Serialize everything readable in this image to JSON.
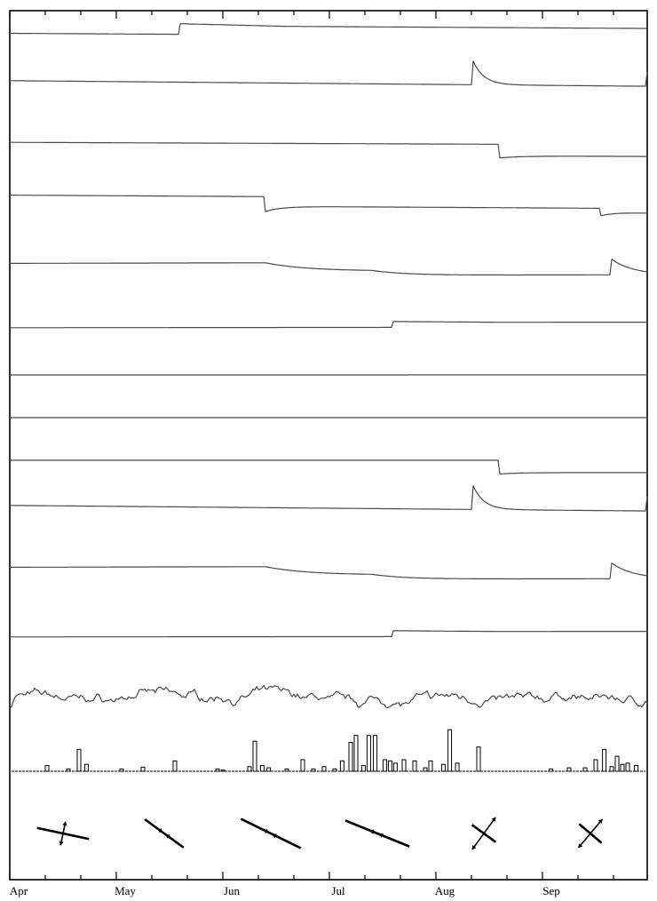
{
  "chart_data": {
    "type": "line",
    "x_axis": {
      "unit": "month",
      "tick_labels": [
        "Apr",
        "May",
        "Jun",
        "Jul",
        "Aug",
        "Sep"
      ],
      "range": [
        0,
        6
      ],
      "minor_ticks_per_month": 3
    },
    "series": [
      {
        "shape": "step",
        "base": 0.75,
        "slope": -0.3,
        "events": [
          {
            "t": 1.6,
            "kind": "step",
            "amp": 0.85,
            "recovery": 0.08
          }
        ]
      },
      {
        "shape": "step",
        "base": 0.8,
        "slope": -0.45,
        "events": [
          {
            "t": 4.35,
            "kind": "spike",
            "amp": 1.9,
            "decay": 0.1
          },
          {
            "t": 5.97,
            "kind": "spike",
            "amp": 1.5,
            "decay": 0.05
          }
        ]
      },
      {
        "shape": "step",
        "base": 0.7,
        "slope": -0.2,
        "events": [
          {
            "t": 4.6,
            "kind": "dip",
            "amp": -1.1,
            "decay": 0.2,
            "recovery": 0.85
          }
        ]
      },
      {
        "shape": "step",
        "base": 0.6,
        "slope": -0.3,
        "events": [
          {
            "t": 2.4,
            "kind": "dip",
            "amp": -1.2,
            "decay": 0.15,
            "recovery": 0.65
          },
          {
            "t": 5.55,
            "kind": "dip",
            "amp": -0.6,
            "decay": 0.1,
            "recovery": 0.6
          }
        ]
      },
      {
        "shape": "step",
        "base": 0.1,
        "slope": 0.1,
        "events": [
          {
            "t": 2.4,
            "kind": "drop",
            "amp": -0.6,
            "decay": 0.4
          },
          {
            "t": 3.4,
            "kind": "drop",
            "amp": -0.3,
            "decay": 0.3
          },
          {
            "t": 5.65,
            "kind": "spike",
            "amp": 1.1,
            "decay": 0.2
          }
        ]
      },
      {
        "shape": "step",
        "base": 0.1,
        "slope": 0.05,
        "events": [
          {
            "t": 3.6,
            "kind": "step",
            "amp": 0.55,
            "recovery": 0.04
          }
        ]
      },
      {
        "shape": "flat",
        "base": 0.0,
        "slope": 0.02,
        "events": []
      },
      {
        "shape": "flat",
        "base": 0.0,
        "slope": 0.0,
        "events": []
      },
      {
        "shape": "step",
        "base": 0.0,
        "slope": 0.0,
        "events": [
          {
            "t": 4.6,
            "kind": "dip",
            "amp": -1.1,
            "decay": 0.2,
            "recovery": 0.9
          }
        ]
      },
      {
        "shape": "step",
        "base": 0.8,
        "slope": -0.45,
        "events": [
          {
            "t": 4.35,
            "kind": "spike",
            "amp": 1.9,
            "decay": 0.1
          },
          {
            "t": 5.97,
            "kind": "spike",
            "amp": 1.5,
            "decay": 0.05
          }
        ]
      },
      {
        "shape": "step",
        "base": 0.1,
        "slope": 0.1,
        "events": [
          {
            "t": 2.4,
            "kind": "drop",
            "amp": -0.6,
            "decay": 0.4
          },
          {
            "t": 3.4,
            "kind": "drop",
            "amp": -0.3,
            "decay": 0.3
          },
          {
            "t": 5.65,
            "kind": "spike",
            "amp": 1.1,
            "decay": 0.2
          }
        ]
      },
      {
        "shape": "step",
        "base": 0.1,
        "slope": 0.05,
        "events": [
          {
            "t": 3.6,
            "kind": "step",
            "amp": 0.55,
            "recovery": 0.04
          }
        ]
      },
      {
        "shape": "noise",
        "base": 0.0,
        "slope": 0.0,
        "events": []
      }
    ],
    "bar_series": {
      "type": "bar",
      "values": [
        {
          "t": 0.35,
          "v": 0.25
        },
        {
          "t": 0.55,
          "v": 0.1
        },
        {
          "t": 0.65,
          "v": 0.95
        },
        {
          "t": 0.72,
          "v": 0.3
        },
        {
          "t": 1.05,
          "v": 0.1
        },
        {
          "t": 1.25,
          "v": 0.18
        },
        {
          "t": 1.55,
          "v": 0.45
        },
        {
          "t": 1.95,
          "v": 0.1
        },
        {
          "t": 2.0,
          "v": 0.05
        },
        {
          "t": 2.25,
          "v": 0.2
        },
        {
          "t": 2.3,
          "v": 1.3
        },
        {
          "t": 2.37,
          "v": 0.25
        },
        {
          "t": 2.43,
          "v": 0.15
        },
        {
          "t": 2.6,
          "v": 0.1
        },
        {
          "t": 2.75,
          "v": 0.5
        },
        {
          "t": 2.85,
          "v": 0.1
        },
        {
          "t": 2.95,
          "v": 0.2
        },
        {
          "t": 3.05,
          "v": 0.1
        },
        {
          "t": 3.12,
          "v": 0.45
        },
        {
          "t": 3.2,
          "v": 1.25
        },
        {
          "t": 3.25,
          "v": 1.55
        },
        {
          "t": 3.32,
          "v": 0.25
        },
        {
          "t": 3.37,
          "v": 1.55
        },
        {
          "t": 3.43,
          "v": 1.55
        },
        {
          "t": 3.52,
          "v": 0.5
        },
        {
          "t": 3.57,
          "v": 0.45
        },
        {
          "t": 3.62,
          "v": 0.35
        },
        {
          "t": 3.7,
          "v": 0.5
        },
        {
          "t": 3.8,
          "v": 0.45
        },
        {
          "t": 3.9,
          "v": 0.15
        },
        {
          "t": 3.95,
          "v": 0.45
        },
        {
          "t": 4.07,
          "v": 0.3
        },
        {
          "t": 4.13,
          "v": 1.8
        },
        {
          "t": 4.2,
          "v": 0.35
        },
        {
          "t": 4.4,
          "v": 1.05
        },
        {
          "t": 5.08,
          "v": 0.1
        },
        {
          "t": 5.25,
          "v": 0.15
        },
        {
          "t": 5.4,
          "v": 0.15
        },
        {
          "t": 5.5,
          "v": 0.5
        },
        {
          "t": 5.58,
          "v": 0.95
        },
        {
          "t": 5.65,
          "v": 0.2
        },
        {
          "t": 5.7,
          "v": 0.65
        },
        {
          "t": 5.75,
          "v": 0.3
        },
        {
          "t": 5.8,
          "v": 0.35
        },
        {
          "t": 5.88,
          "v": 0.25
        },
        {
          "t": 6.1,
          "v": 0.3
        }
      ]
    },
    "strain_glyphs": [
      {
        "t": 0.5,
        "axis_angle_deg": 12,
        "axis_len": 1.0,
        "arrow_angle_deg": -78,
        "arrow_len": 0.45,
        "arrows_out": true
      },
      {
        "t": 1.45,
        "axis_angle_deg": 36,
        "axis_len": 0.9,
        "arrow_angle_deg": 36,
        "arrow_len": 0.15,
        "arrows_out": false
      },
      {
        "t": 2.45,
        "axis_angle_deg": 26,
        "axis_len": 1.25,
        "arrow_angle_deg": 26,
        "arrow_len": 0.2,
        "arrows_out": false
      },
      {
        "t": 3.45,
        "axis_angle_deg": 22,
        "axis_len": 1.3,
        "arrow_angle_deg": 22,
        "arrow_len": 0.15,
        "arrows_out": false
      },
      {
        "t": 4.45,
        "axis_angle_deg": 36,
        "axis_len": 0.55,
        "arrow_angle_deg": -54,
        "arrow_len": 0.75,
        "arrows_out": true
      },
      {
        "t": 5.45,
        "axis_angle_deg": 40,
        "axis_len": 0.55,
        "arrow_angle_deg": -50,
        "arrow_len": 0.7,
        "arrows_out": true
      }
    ]
  }
}
